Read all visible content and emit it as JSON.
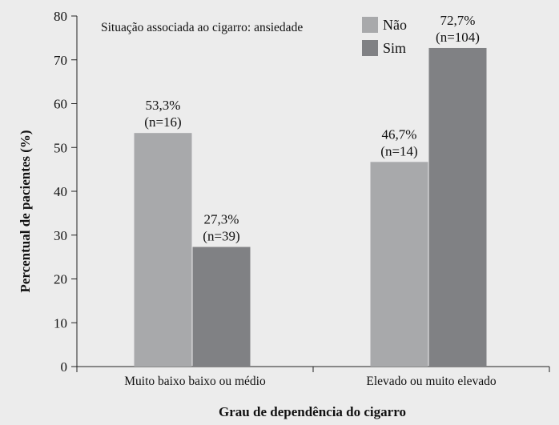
{
  "chart_data": {
    "type": "bar",
    "title": "Situação associada ao cigarro: ansiedade",
    "xlabel": "Grau de dependência do cigarro",
    "ylabel": "Percentual de pacientes (%)",
    "ylim": [
      0,
      80
    ],
    "yticks": [
      0,
      10,
      20,
      30,
      40,
      50,
      60,
      70,
      80
    ],
    "categories": [
      "Muito baixo baixo ou médio",
      "Elevado ou muito elevado"
    ],
    "series": [
      {
        "name": "Não",
        "color": "#a8a9ab",
        "values": [
          53.3,
          46.7
        ],
        "labels": [
          "53,3%",
          "46,7%"
        ],
        "n_labels": [
          "(n=16)",
          "(n=14)"
        ]
      },
      {
        "name": "Sim",
        "color": "#808184",
        "values": [
          27.3,
          72.7
        ],
        "labels": [
          "27,3%",
          "72,7%"
        ],
        "n_labels": [
          "(n=39)",
          "(n=104)"
        ]
      }
    ],
    "legend_position": "top-right",
    "grid": false
  }
}
